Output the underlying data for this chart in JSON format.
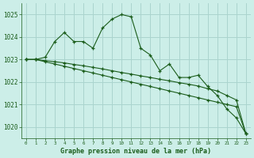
{
  "title": "Graphe pression niveau de la mer (hPa)",
  "bg_color": "#cceee8",
  "grid_color": "#aad4ce",
  "line_color": "#1a5c1a",
  "x_labels": [
    "0",
    "1",
    "2",
    "3",
    "4",
    "5",
    "6",
    "7",
    "8",
    "9",
    "10",
    "11",
    "12",
    "13",
    "14",
    "15",
    "16",
    "17",
    "18",
    "19",
    "20",
    "21",
    "22",
    "23"
  ],
  "series1": [
    1023.0,
    1023.0,
    1023.1,
    1023.8,
    1024.2,
    1023.8,
    1023.8,
    1023.5,
    1024.4,
    1024.8,
    1025.0,
    1024.9,
    1023.5,
    1023.2,
    1022.5,
    1022.8,
    1022.2,
    1022.2,
    1022.3,
    1021.8,
    1021.4,
    1020.8,
    1020.4,
    1019.7
  ],
  "series2": [
    1023.0,
    1023.0,
    1022.9,
    1022.8,
    1022.7,
    1022.6,
    1022.5,
    1022.4,
    1022.3,
    1022.2,
    1022.1,
    1022.0,
    1021.9,
    1021.8,
    1021.7,
    1021.6,
    1021.5,
    1021.4,
    1021.3,
    1021.2,
    1021.1,
    1021.0,
    1020.9,
    1019.7
  ],
  "series3": [
    1023.0,
    1023.0,
    1022.95,
    1022.9,
    1022.85,
    1022.78,
    1022.72,
    1022.65,
    1022.58,
    1022.5,
    1022.42,
    1022.35,
    1022.27,
    1022.2,
    1022.12,
    1022.05,
    1021.97,
    1021.9,
    1021.82,
    1021.7,
    1021.6,
    1021.4,
    1021.2,
    1019.7
  ],
  "ylim_min": 1019.5,
  "ylim_max": 1025.5,
  "yticks": [
    1020,
    1021,
    1022,
    1023,
    1024,
    1025
  ]
}
